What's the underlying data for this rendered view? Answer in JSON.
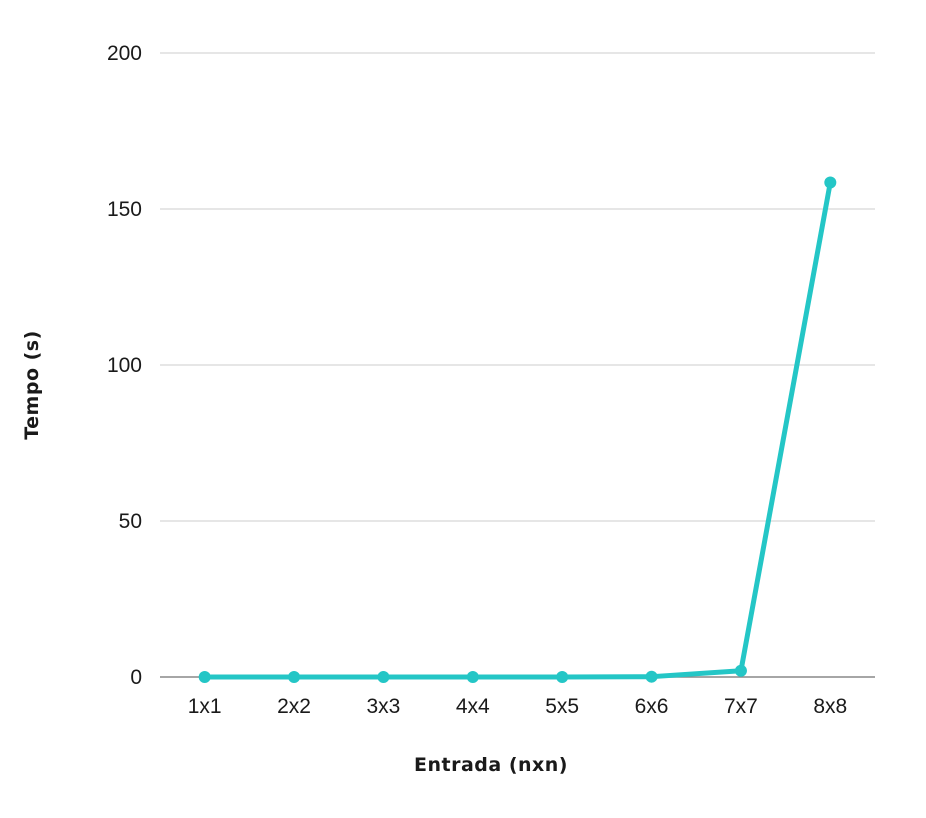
{
  "chart_data": {
    "type": "line",
    "title": "",
    "xlabel": "Entrada (nxn)",
    "ylabel": "Tempo (s)",
    "categories": [
      "1x1",
      "2x2",
      "3x3",
      "4x4",
      "5x5",
      "6x6",
      "7x7",
      "8x8"
    ],
    "series": [
      {
        "values": [
          0,
          0,
          0,
          0,
          0,
          0.1,
          2,
          158.5
        ]
      }
    ],
    "ylim": [
      0,
      200
    ],
    "yticks": [
      0,
      50,
      100,
      150,
      200
    ],
    "grid": true,
    "legend": "none",
    "colors": {
      "line": "#24C6C6",
      "grid": "#cccccc",
      "axis": "#888888"
    }
  }
}
